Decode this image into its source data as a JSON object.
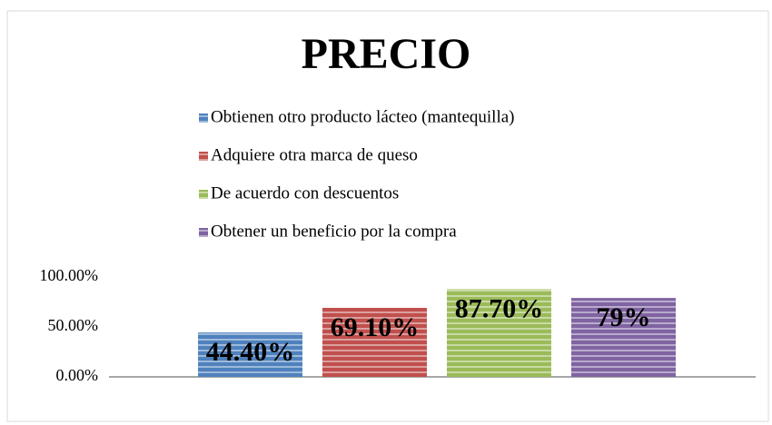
{
  "chart_data": {
    "type": "bar",
    "title": "PRECIO",
    "categories": [
      null
    ],
    "series": [
      {
        "name": "Obtienen otro producto lácteo (mantequilla)",
        "color": "#4f81bd",
        "values": [
          44.4
        ],
        "value_labels": [
          "44.40%"
        ]
      },
      {
        "name": "Adquiere otra marca de queso",
        "color": "#c0504d",
        "values": [
          69.1
        ],
        "value_labels": [
          "69.10%"
        ]
      },
      {
        "name": "De acuerdo con descuentos",
        "color": "#9bbb59",
        "values": [
          87.7
        ],
        "value_labels": [
          "87.70%"
        ]
      },
      {
        "name": "Obtener un beneficio por la compra",
        "color": "#8064a2",
        "values": [
          79
        ],
        "value_labels": [
          "79%"
        ]
      }
    ],
    "ylim": [
      0,
      100
    ],
    "yticks": [
      {
        "value": 0,
        "label": "0.00%"
      },
      {
        "value": 50,
        "label": "50.00%"
      },
      {
        "value": 100,
        "label": "100.00%"
      }
    ],
    "grid": false
  }
}
